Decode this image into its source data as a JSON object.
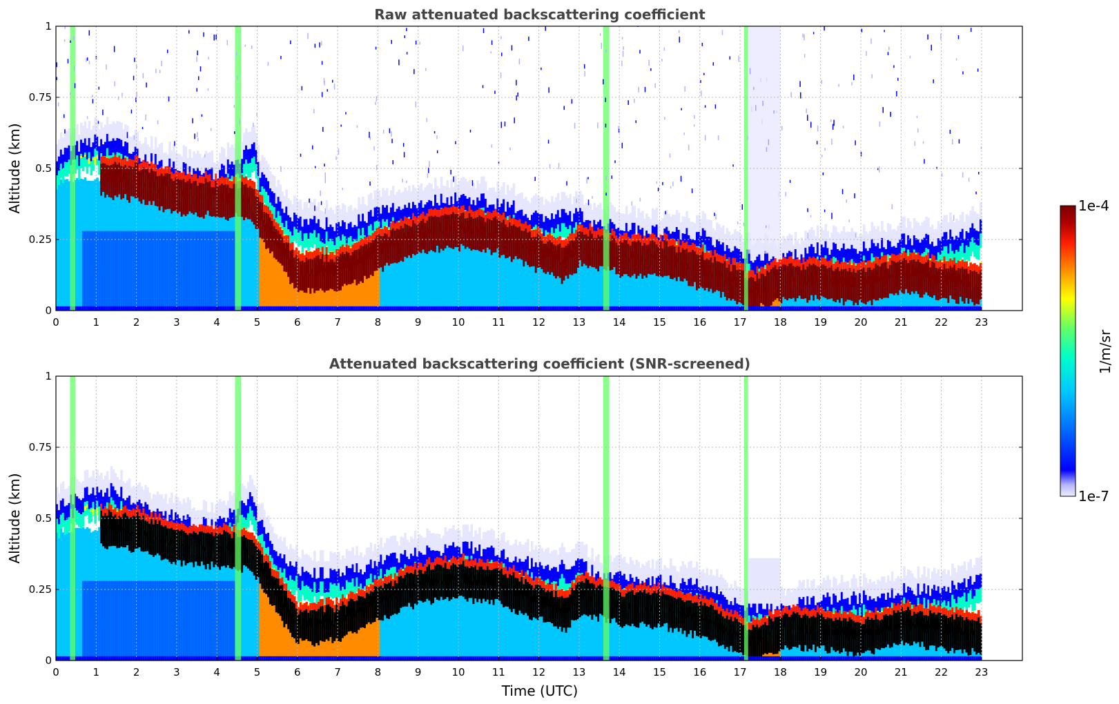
{
  "chart_data": [
    {
      "type": "heatmap",
      "title": "Raw attenuated backscattering coefficient",
      "xlabel": "",
      "ylabel": "Altitude (km)",
      "xlim": [
        0,
        24
      ],
      "ylim": [
        0,
        1
      ],
      "x_ticks": [
        "0",
        "1",
        "2",
        "3",
        "4",
        "5",
        "6",
        "7",
        "8",
        "9",
        "10",
        "11",
        "12",
        "13",
        "14",
        "15",
        "16",
        "17",
        "18",
        "19",
        "20",
        "21",
        "22",
        "23"
      ],
      "y_ticks": [
        "0",
        "0.25",
        "0.5",
        "0.75",
        "1"
      ],
      "grid": true,
      "data_extent_hours": 23,
      "layer_top_km": [
        [
          0,
          0.55
        ],
        [
          1,
          0.6
        ],
        [
          1.5,
          0.6
        ],
        [
          2,
          0.55
        ],
        [
          3,
          0.5
        ],
        [
          4,
          0.48
        ],
        [
          4.9,
          0.58
        ],
        [
          5,
          0.5
        ],
        [
          5.5,
          0.38
        ],
        [
          6,
          0.32
        ],
        [
          7,
          0.3
        ],
        [
          7.5,
          0.32
        ],
        [
          8,
          0.35
        ],
        [
          9,
          0.38
        ],
        [
          10,
          0.4
        ],
        [
          11,
          0.38
        ],
        [
          12,
          0.33
        ],
        [
          13,
          0.34
        ],
        [
          13.5,
          0.3
        ],
        [
          14,
          0.3
        ],
        [
          15,
          0.28
        ],
        [
          16,
          0.27
        ],
        [
          17,
          0.2
        ],
        [
          18,
          0.18
        ],
        [
          19,
          0.22
        ],
        [
          20,
          0.22
        ],
        [
          21,
          0.25
        ],
        [
          22,
          0.25
        ],
        [
          23,
          0.3
        ]
      ],
      "core_km": [
        [
          1.2,
          0.46
        ],
        [
          2,
          0.45
        ],
        [
          3,
          0.4
        ],
        [
          4,
          0.39
        ],
        [
          4.8,
          0.38
        ],
        [
          5.5,
          0.22
        ],
        [
          6,
          0.12
        ],
        [
          7,
          0.13
        ],
        [
          8,
          0.2
        ],
        [
          9,
          0.26
        ],
        [
          10,
          0.28
        ],
        [
          11,
          0.26
        ],
        [
          12,
          0.2
        ],
        [
          12.6,
          0.16
        ],
        [
          13,
          0.22
        ],
        [
          13.8,
          0.2
        ],
        [
          14,
          0.18
        ],
        [
          15,
          0.18
        ],
        [
          16,
          0.14
        ],
        [
          17,
          0.08
        ],
        [
          17.2,
          0.05
        ],
        [
          18,
          0.1
        ],
        [
          19,
          0.1
        ],
        [
          20,
          0.08
        ],
        [
          21,
          0.12
        ],
        [
          22,
          0.1
        ],
        [
          23,
          0.08
        ]
      ]
    },
    {
      "type": "heatmap",
      "title": "Attenuated backscattering coefficient (SNR-screened)",
      "xlabel": "Time (UTC)",
      "ylabel": "Altitude (km)",
      "xlim": [
        0,
        24
      ],
      "ylim": [
        0,
        1
      ],
      "x_ticks": [
        "0",
        "1",
        "2",
        "3",
        "4",
        "5",
        "6",
        "7",
        "8",
        "9",
        "10",
        "11",
        "12",
        "13",
        "14",
        "15",
        "16",
        "17",
        "18",
        "19",
        "20",
        "21",
        "22",
        "23"
      ],
      "y_ticks": [
        "0",
        "0.25",
        "0.5",
        "0.75",
        "1"
      ],
      "grid": true,
      "data_extent_hours": 23,
      "saturated_color": "#000000"
    }
  ],
  "colorbar": {
    "label": "1/m/sr",
    "max_label": "1e-4",
    "min_label": "1e-7",
    "scale": "log",
    "colors": [
      "#e6e6ff",
      "#b4b4ff",
      "#0000ff",
      "#0064ff",
      "#00c8ff",
      "#00ffc8",
      "#64ff64",
      "#ffff00",
      "#ff8c00",
      "#ff2000",
      "#b00000",
      "#7a0000"
    ]
  }
}
